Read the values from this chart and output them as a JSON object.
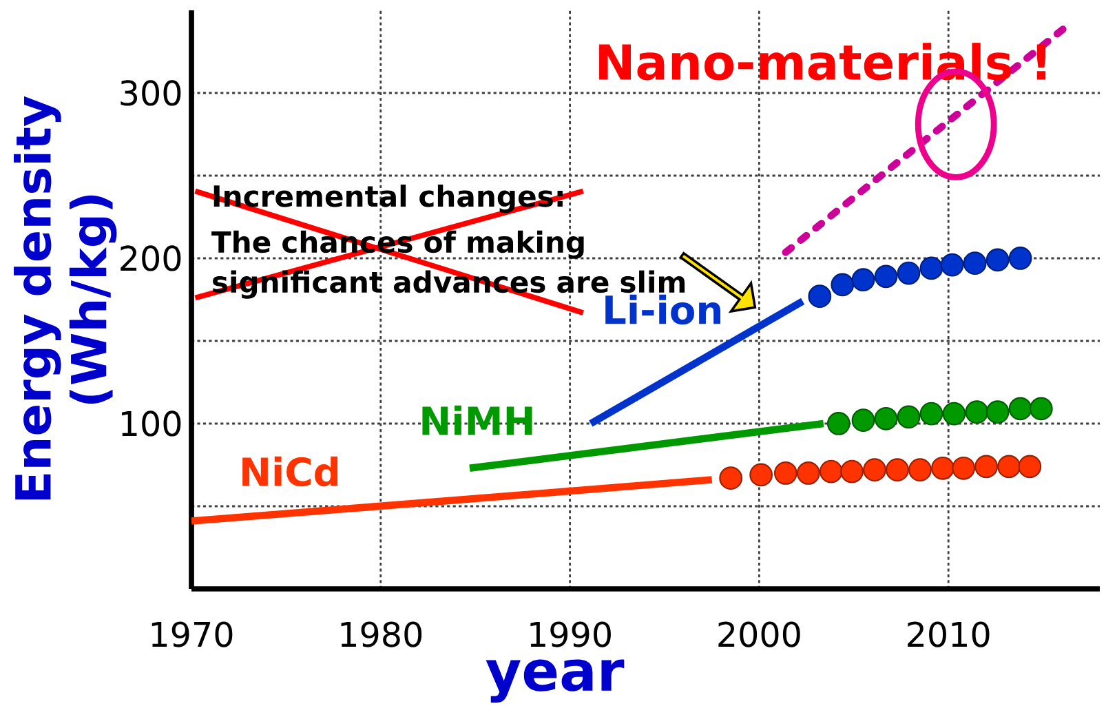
{
  "chart_data": {
    "type": "line",
    "xlabel": "year",
    "ylabel": "Energy density (Wh/kg)",
    "xlim": [
      1970,
      2018
    ],
    "ylim": [
      0,
      350
    ],
    "xticks": [
      1970,
      1980,
      1990,
      2000,
      2010
    ],
    "yticks": [
      {
        "value": 50,
        "label": null
      },
      100,
      {
        "value": 150,
        "label": null
      },
      200,
      {
        "value": 250,
        "label": null
      },
      300
    ],
    "grid": true,
    "series": [
      {
        "name": "NiCd",
        "color": "#ff3300",
        "marker": "none",
        "x": [
          1970,
          1997.5
        ],
        "values": [
          41,
          66
        ]
      },
      {
        "type": "scatter",
        "color": "#ff3300",
        "marker": "circle",
        "x": [
          1998.5,
          2000.1,
          2001.4,
          2002.6,
          2003.8,
          2004.9,
          2006.1,
          2007.3,
          2008.5,
          2009.7,
          2010.8,
          2012.0,
          2013.2,
          2014.3
        ],
        "values": [
          67,
          69,
          70,
          70,
          71,
          71,
          72,
          72,
          72,
          73,
          73,
          74,
          74,
          74
        ]
      },
      {
        "name": "NiMH",
        "color": "#009900",
        "marker": "none",
        "x": [
          1984.7,
          2003.4
        ],
        "values": [
          73,
          100
        ]
      },
      {
        "type": "scatter",
        "color": "#009900",
        "marker": "circle",
        "x": [
          2004.2,
          2005.5,
          2006.7,
          2007.9,
          2009.1,
          2010.3,
          2011.5,
          2012.6,
          2013.8,
          2014.9
        ],
        "values": [
          100,
          102,
          103,
          104,
          106,
          106,
          107,
          107,
          109,
          109
        ]
      },
      {
        "name": "Li-ion",
        "color": "#0033cc",
        "marker": "none",
        "x": [
          1991.1,
          2002.3
        ],
        "values": [
          100,
          174
        ]
      },
      {
        "type": "scatter",
        "color": "#0033cc",
        "marker": "circle",
        "x": [
          2003.2,
          2004.4,
          2005.5,
          2006.7,
          2007.9,
          2009.1,
          2010.2,
          2011.4,
          2012.6,
          2013.8
        ],
        "values": [
          177,
          184,
          187,
          189,
          191,
          194,
          196,
          197,
          199,
          200
        ]
      },
      {
        "color": "#cc0099",
        "marker": "none",
        "line_style": "dotted",
        "x": [
          2000.9,
          2016.1
        ],
        "values": [
          199,
          339
        ]
      }
    ],
    "annotations": [
      "Incremental changes:",
      "The chances of making significant advances are slim",
      "Nano-materials !"
    ]
  }
}
